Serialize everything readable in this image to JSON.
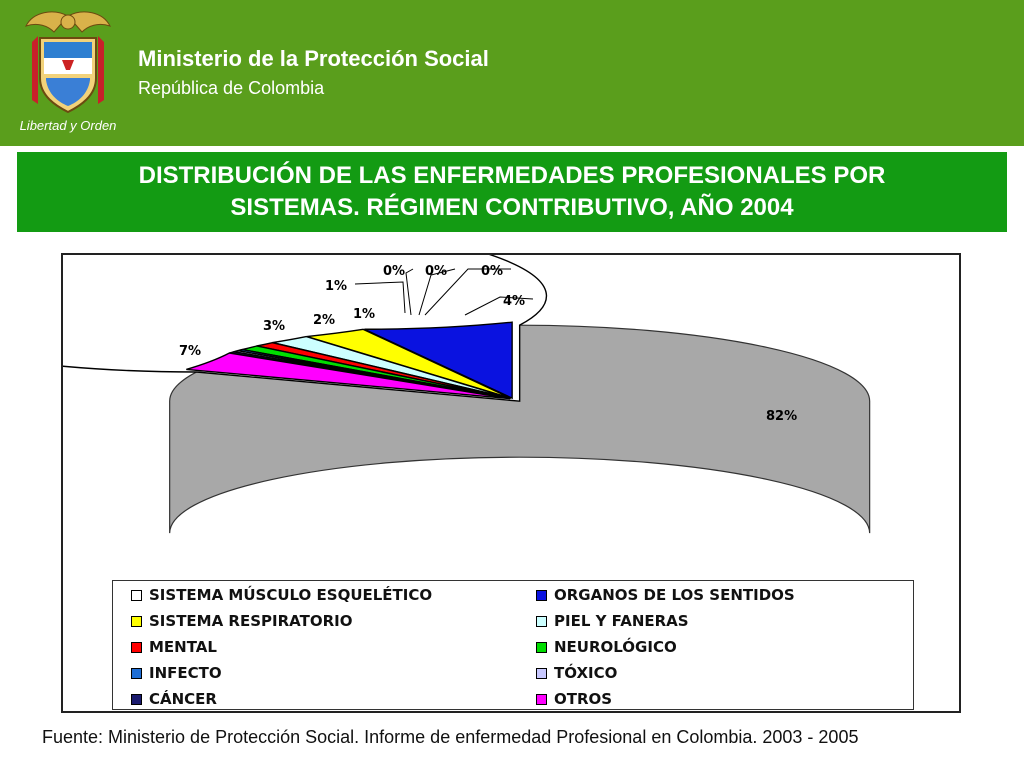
{
  "header": {
    "ministry": "Ministerio de la Protección Social",
    "country": "República de Colombia",
    "logo_caption": "Libertad y Orden",
    "background": "#5a9e1c"
  },
  "title": {
    "line1": "DISTRIBUCIÓN DE LAS ENFERMEDADES PROFESIONALES POR",
    "line2": "SISTEMAS. RÉGIMEN CONTRIBUTIVO, AÑO 2004",
    "background": "#139b13"
  },
  "chart_data": {
    "type": "pie",
    "style": "3d-exploded",
    "legend_position": "bottom",
    "categories": [
      "SISTEMA MÚSCULO ESQUELÉTICO",
      "ORGANOS DE LOS SENTIDOS",
      "SISTEMA RESPIRATORIO",
      "PIEL Y FANERAS",
      "MENTAL",
      "NEUROLÓGICO",
      "INFECTO",
      "TÓXICO",
      "CÁNCER",
      "OTROS"
    ],
    "values": [
      82,
      7,
      3,
      2,
      1,
      1,
      0,
      0,
      0,
      4
    ],
    "labels": [
      "82%",
      "7%",
      "3%",
      "2%",
      "1%",
      "1%",
      "0%",
      "0%",
      "0%",
      "4%"
    ],
    "colors": [
      "#ffffff",
      "#0a12e0",
      "#ffff00",
      "#ccffff",
      "#ff0000",
      "#00dd00",
      "#1f6fd6",
      "#c8c8ff",
      "#1a1a6e",
      "#ff00ff"
    ]
  },
  "source": "Fuente: Ministerio de Protección Social. Informe de enfermedad Profesional en Colombia. 2003 - 2005"
}
